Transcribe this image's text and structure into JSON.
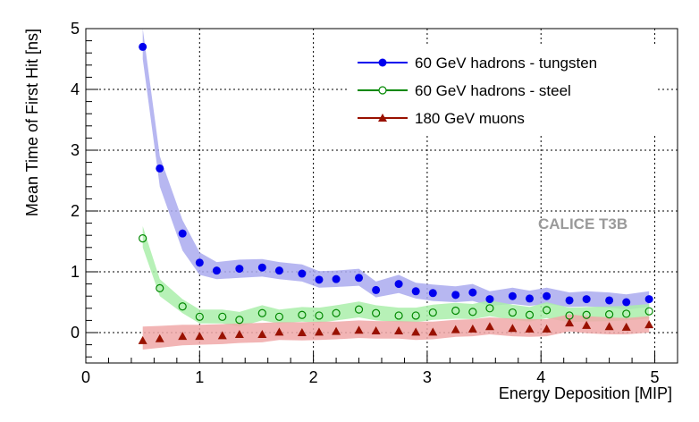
{
  "chart_data": {
    "type": "scatter",
    "xlabel": "Energy Deposition [MIP]",
    "ylabel": "Mean Time of First Hit [ns]",
    "xlim": [
      0,
      5.2
    ],
    "ylim": [
      -0.5,
      5
    ],
    "xticks": [
      "0",
      "1",
      "2",
      "3",
      "4",
      "5"
    ],
    "yticks": [
      "0",
      "1",
      "2",
      "3",
      "4",
      "5"
    ],
    "grid": true,
    "legend_position": "top-right",
    "watermark": "CALICE T3B",
    "series": [
      {
        "name": "60 GeV hadrons - tungsten",
        "color": "#0000ee",
        "band_color": "#aaaaee",
        "marker": "filled-circle",
        "x": [
          0.5,
          0.65,
          0.85,
          1.0,
          1.15,
          1.35,
          1.55,
          1.7,
          1.9,
          2.05,
          2.2,
          2.4,
          2.55,
          2.75,
          2.9,
          3.05,
          3.25,
          3.4,
          3.55,
          3.75,
          3.9,
          4.05,
          4.25,
          4.4,
          4.6,
          4.75,
          4.95
        ],
        "y": [
          4.7,
          2.7,
          1.63,
          1.15,
          1.02,
          1.05,
          1.07,
          1.02,
          0.97,
          0.87,
          0.88,
          0.9,
          0.7,
          0.8,
          0.68,
          0.65,
          0.62,
          0.66,
          0.55,
          0.6,
          0.56,
          0.6,
          0.53,
          0.55,
          0.53,
          0.5,
          0.55
        ],
        "band_low": [
          4.5,
          2.4,
          1.35,
          0.95,
          0.88,
          0.9,
          0.92,
          0.88,
          0.84,
          0.74,
          0.75,
          0.77,
          0.58,
          0.65,
          0.56,
          0.52,
          0.5,
          0.52,
          0.44,
          0.47,
          0.44,
          0.47,
          0.42,
          0.43,
          0.41,
          0.38,
          0.42
        ],
        "band_high": [
          5.0,
          2.9,
          1.85,
          1.32,
          1.16,
          1.2,
          1.21,
          1.16,
          1.12,
          1.01,
          1.02,
          1.05,
          0.84,
          0.95,
          0.82,
          0.79,
          0.76,
          0.8,
          0.68,
          0.74,
          0.69,
          0.74,
          0.66,
          0.68,
          0.66,
          0.63,
          0.68
        ]
      },
      {
        "name": "60 GeV hadrons - steel",
        "color": "#008800",
        "band_color": "#aaeeaa",
        "marker": "open-circle",
        "x": [
          0.5,
          0.65,
          0.85,
          1.0,
          1.2,
          1.35,
          1.55,
          1.7,
          1.9,
          2.05,
          2.2,
          2.4,
          2.55,
          2.75,
          2.9,
          3.05,
          3.25,
          3.4,
          3.55,
          3.75,
          3.9,
          4.05,
          4.25,
          4.4,
          4.6,
          4.75,
          4.95
        ],
        "y": [
          1.55,
          0.73,
          0.43,
          0.26,
          0.26,
          0.21,
          0.32,
          0.26,
          0.29,
          0.28,
          0.32,
          0.38,
          0.32,
          0.28,
          0.28,
          0.33,
          0.36,
          0.34,
          0.4,
          0.33,
          0.29,
          0.37,
          0.28,
          0.29,
          0.3,
          0.31,
          0.35
        ],
        "band_low": [
          1.4,
          0.6,
          0.32,
          0.15,
          0.15,
          0.1,
          0.2,
          0.15,
          0.18,
          0.16,
          0.2,
          0.25,
          0.2,
          0.17,
          0.17,
          0.21,
          0.23,
          0.22,
          0.27,
          0.21,
          0.18,
          0.24,
          0.17,
          0.18,
          0.19,
          0.2,
          0.23
        ],
        "band_high": [
          1.75,
          0.88,
          0.55,
          0.38,
          0.38,
          0.34,
          0.45,
          0.38,
          0.42,
          0.41,
          0.45,
          0.51,
          0.45,
          0.41,
          0.41,
          0.46,
          0.49,
          0.47,
          0.53,
          0.46,
          0.42,
          0.5,
          0.41,
          0.42,
          0.43,
          0.44,
          0.47
        ]
      },
      {
        "name": "180 GeV muons",
        "color": "#991100",
        "band_color": "#f0a8a8",
        "marker": "filled-triangle",
        "x": [
          0.5,
          0.65,
          0.85,
          1.0,
          1.2,
          1.35,
          1.55,
          1.7,
          1.9,
          2.05,
          2.2,
          2.4,
          2.55,
          2.75,
          2.9,
          3.05,
          3.25,
          3.4,
          3.55,
          3.75,
          3.9,
          4.05,
          4.25,
          4.4,
          4.6,
          4.75,
          4.95
        ],
        "y": [
          -0.13,
          -0.1,
          -0.06,
          -0.06,
          -0.05,
          -0.03,
          -0.03,
          0.01,
          0.0,
          0.01,
          0.02,
          0.04,
          0.03,
          0.03,
          0.01,
          0.01,
          0.05,
          0.06,
          0.1,
          0.07,
          0.06,
          0.06,
          0.16,
          0.12,
          0.1,
          0.09,
          0.13
        ],
        "band_low": [
          -0.28,
          -0.25,
          -0.21,
          -0.2,
          -0.19,
          -0.17,
          -0.16,
          -0.12,
          -0.13,
          -0.12,
          -0.11,
          -0.09,
          -0.1,
          -0.1,
          -0.12,
          -0.11,
          -0.07,
          -0.06,
          -0.03,
          -0.06,
          -0.07,
          -0.06,
          0.02,
          -0.01,
          -0.03,
          -0.03,
          0.0
        ],
        "band_high": [
          0.1,
          0.11,
          0.13,
          0.13,
          0.14,
          0.15,
          0.16,
          0.17,
          0.17,
          0.18,
          0.18,
          0.2,
          0.19,
          0.19,
          0.18,
          0.18,
          0.21,
          0.22,
          0.25,
          0.23,
          0.22,
          0.22,
          0.3,
          0.27,
          0.25,
          0.24,
          0.27
        ]
      }
    ]
  }
}
